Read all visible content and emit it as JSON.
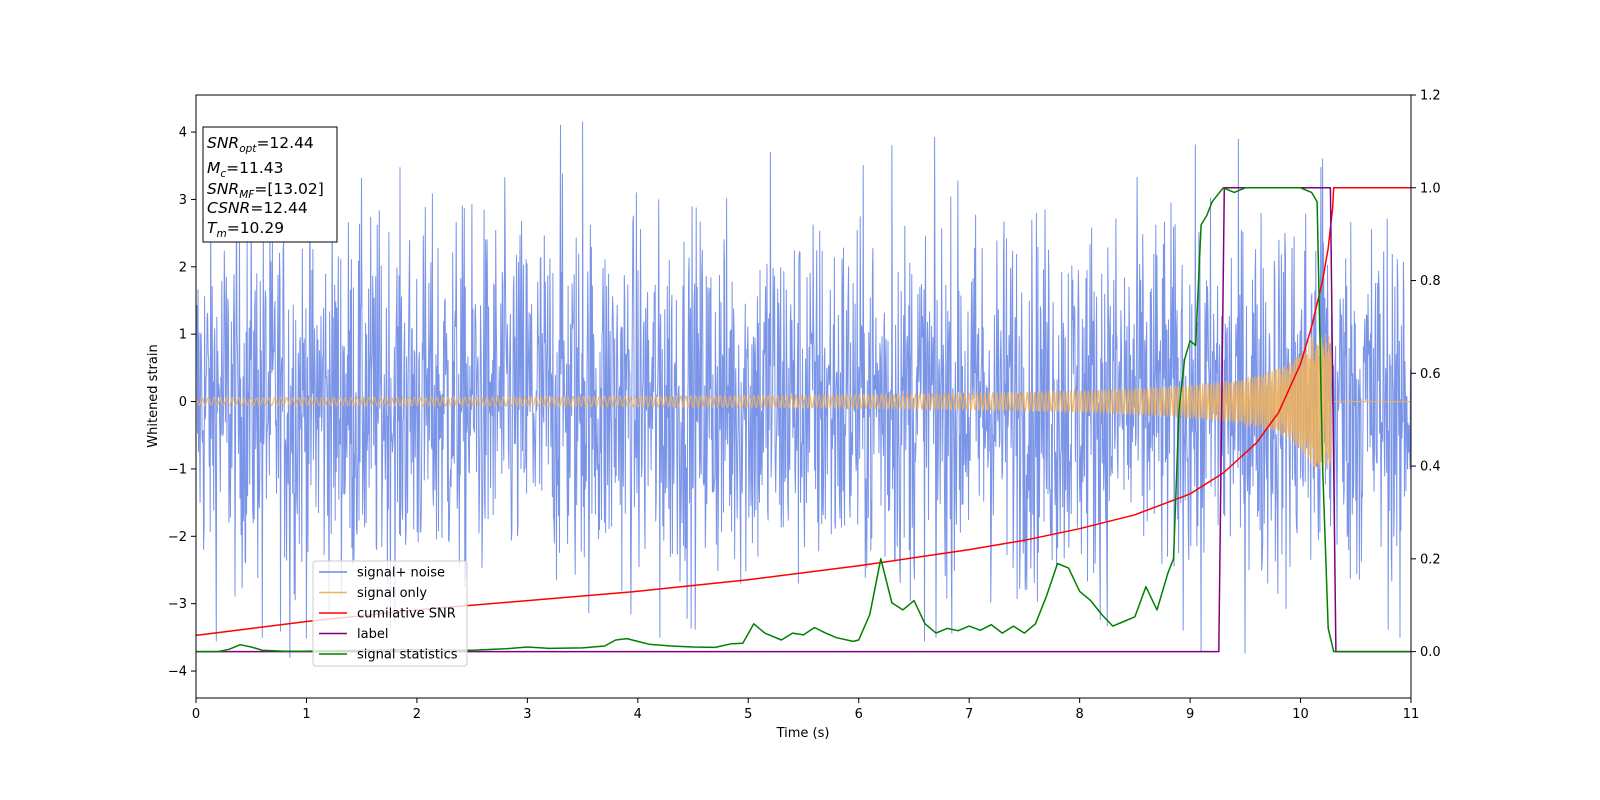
{
  "chart_data": {
    "type": "line",
    "xlabel": "Time (s)",
    "ylabel": "Whitened strain",
    "xlim": [
      0,
      11
    ],
    "ylim_left": [
      -4.4,
      4.55
    ],
    "ylim_right": [
      -0.1,
      1.2
    ],
    "x_ticks": [
      "0",
      "1",
      "2",
      "3",
      "4",
      "5",
      "6",
      "7",
      "8",
      "9",
      "10",
      "11"
    ],
    "y_ticks_left": [
      "−4",
      "−3",
      "−2",
      "−1",
      "0",
      "1",
      "2",
      "3",
      "4"
    ],
    "y_ticks_right": [
      "0.0",
      "0.2",
      "0.4",
      "0.6",
      "0.8",
      "1.0",
      "1.2"
    ],
    "grid": false,
    "legend_position": "lower-left",
    "stats_box": [
      {
        "var": "SNR",
        "sub": "opt",
        "value": "=12.44"
      },
      {
        "var": "M",
        "sub": "c",
        "value": "=11.43"
      },
      {
        "var": "SNR",
        "sub": "MF",
        "value": "=[13.02]"
      },
      {
        "var": "CSNR",
        "sub": "",
        "value": "=12.44"
      },
      {
        "var": "T",
        "sub": "m",
        "value": "=10.29"
      }
    ],
    "series": [
      {
        "name": "signal+ noise",
        "axis": "left",
        "color": "#6b88e6",
        "kind": "noise",
        "envelope": {
          "x": [
            0,
            2,
            4,
            6,
            8,
            9,
            9.8,
            10.2,
            10.3,
            11
          ],
          "amp": [
            2.8,
            2.8,
            2.8,
            2.8,
            2.8,
            2.8,
            2.9,
            3.3,
            2.8,
            2.8
          ]
        },
        "spikes": [
          {
            "x": 3.5,
            "y": 4.15
          },
          {
            "x": 3.3,
            "y": 4.1
          },
          {
            "x": 0.85,
            "y": 3.9
          },
          {
            "x": 5.2,
            "y": 3.7
          },
          {
            "x": 6.3,
            "y": 3.8
          },
          {
            "x": 10.2,
            "y": 3.6
          },
          {
            "x": 0.85,
            "y": -3.8
          },
          {
            "x": 4.2,
            "y": -3.5
          },
          {
            "x": 6.7,
            "y": -3.5
          },
          {
            "x": 9.1,
            "y": -3.7
          },
          {
            "x": 10.9,
            "y": -3.5
          },
          {
            "x": 0.6,
            "y": -3.5
          }
        ]
      },
      {
        "name": "signal only",
        "axis": "left",
        "color": "#f0b25a",
        "kind": "chirp",
        "t_merge": 10.29,
        "amp_end": 1.0
      },
      {
        "name": "cumilative SNR",
        "axis": "right",
        "color": "#ff0000",
        "x": [
          0,
          1,
          2,
          3,
          4,
          5,
          6,
          7,
          7.5,
          8,
          8.5,
          9,
          9.3,
          9.6,
          9.8,
          10.0,
          10.1,
          10.2,
          10.25,
          10.29,
          10.3,
          11
        ],
        "y": [
          0.035,
          0.065,
          0.09,
          0.11,
          0.13,
          0.155,
          0.185,
          0.22,
          0.24,
          0.265,
          0.295,
          0.34,
          0.385,
          0.45,
          0.515,
          0.62,
          0.7,
          0.8,
          0.87,
          0.955,
          1.0,
          1.0
        ]
      },
      {
        "name": "label",
        "axis": "right",
        "color": "#800080",
        "x": [
          0,
          9.26,
          9.31,
          10.27,
          10.32,
          11
        ],
        "y": [
          0,
          0,
          1,
          1,
          0,
          0
        ]
      },
      {
        "name": "signal statistics",
        "axis": "right",
        "color": "#008000",
        "x": [
          0,
          0.2,
          0.3,
          0.4,
          0.5,
          0.6,
          0.8,
          1.0,
          1.2,
          1.5,
          2.0,
          2.5,
          2.8,
          3.0,
          3.2,
          3.5,
          3.7,
          3.8,
          3.9,
          4.0,
          4.1,
          4.3,
          4.5,
          4.7,
          4.85,
          4.95,
          5.05,
          5.15,
          5.3,
          5.4,
          5.5,
          5.6,
          5.7,
          5.8,
          5.95,
          6.0,
          6.1,
          6.2,
          6.3,
          6.4,
          6.5,
          6.6,
          6.7,
          6.8,
          6.9,
          7.0,
          7.1,
          7.2,
          7.3,
          7.4,
          7.5,
          7.6,
          7.7,
          7.8,
          7.9,
          8.0,
          8.1,
          8.2,
          8.3,
          8.4,
          8.5,
          8.6,
          8.7,
          8.8,
          8.85,
          8.9,
          8.95,
          9.0,
          9.05,
          9.1,
          9.15,
          9.2,
          9.3,
          9.4,
          9.5,
          9.6,
          9.7,
          9.8,
          9.9,
          10.0,
          10.1,
          10.15,
          10.2,
          10.25,
          10.3,
          10.35,
          11
        ],
        "y": [
          0,
          0,
          0.005,
          0.015,
          0.01,
          0.003,
          0.001,
          0.001,
          0.002,
          0.003,
          0.004,
          0.003,
          0.006,
          0.01,
          0.007,
          0.008,
          0.012,
          0.025,
          0.028,
          0.022,
          0.016,
          0.012,
          0.01,
          0.009,
          0.017,
          0.018,
          0.06,
          0.04,
          0.025,
          0.04,
          0.036,
          0.052,
          0.04,
          0.03,
          0.022,
          0.025,
          0.08,
          0.2,
          0.105,
          0.09,
          0.11,
          0.06,
          0.04,
          0.05,
          0.045,
          0.055,
          0.046,
          0.058,
          0.04,
          0.055,
          0.04,
          0.06,
          0.12,
          0.19,
          0.18,
          0.13,
          0.11,
          0.08,
          0.055,
          0.065,
          0.075,
          0.14,
          0.09,
          0.17,
          0.2,
          0.52,
          0.63,
          0.67,
          0.66,
          0.92,
          0.94,
          0.97,
          1.0,
          0.99,
          1.0,
          1.0,
          1.0,
          1.0,
          1.0,
          1.0,
          0.99,
          0.97,
          0.4,
          0.05,
          0.0,
          0.0,
          0.0
        ]
      }
    ]
  }
}
